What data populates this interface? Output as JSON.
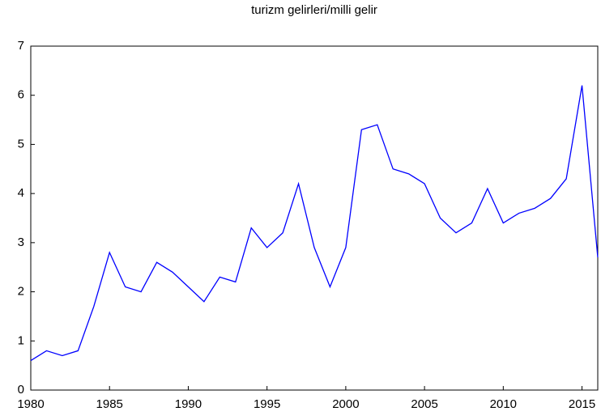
{
  "chart_data": {
    "type": "line",
    "title": "turizm gelirleri/milli gelir",
    "x": [
      1980,
      1981,
      1982,
      1983,
      1984,
      1985,
      1986,
      1987,
      1988,
      1989,
      1990,
      1991,
      1992,
      1993,
      1994,
      1995,
      1996,
      1997,
      1998,
      1999,
      2000,
      2001,
      2002,
      2003,
      2004,
      2005,
      2006,
      2007,
      2008,
      2009,
      2010,
      2011,
      2012,
      2013,
      2014,
      2015,
      2016
    ],
    "series": [
      {
        "name": "turizm gelirleri/milli gelir",
        "color": "#0000ff",
        "values": [
          0.6,
          0.8,
          0.7,
          0.8,
          1.7,
          2.8,
          2.1,
          2.0,
          2.6,
          2.4,
          2.1,
          1.8,
          2.3,
          2.2,
          3.3,
          2.9,
          3.2,
          4.2,
          2.9,
          2.1,
          2.9,
          5.3,
          5.4,
          4.5,
          4.4,
          4.2,
          3.5,
          3.2,
          3.4,
          4.1,
          3.4,
          3.6,
          3.7,
          3.9,
          4.3,
          6.2,
          2.7
        ]
      }
    ],
    "xlim": [
      1980,
      2016
    ],
    "xticks": [
      1980,
      1985,
      1990,
      1995,
      2000,
      2005,
      2010,
      2015
    ],
    "ylim": [
      0,
      7
    ],
    "yticks": [
      0,
      1,
      2,
      3,
      4,
      5,
      6,
      7
    ],
    "grid": false
  }
}
